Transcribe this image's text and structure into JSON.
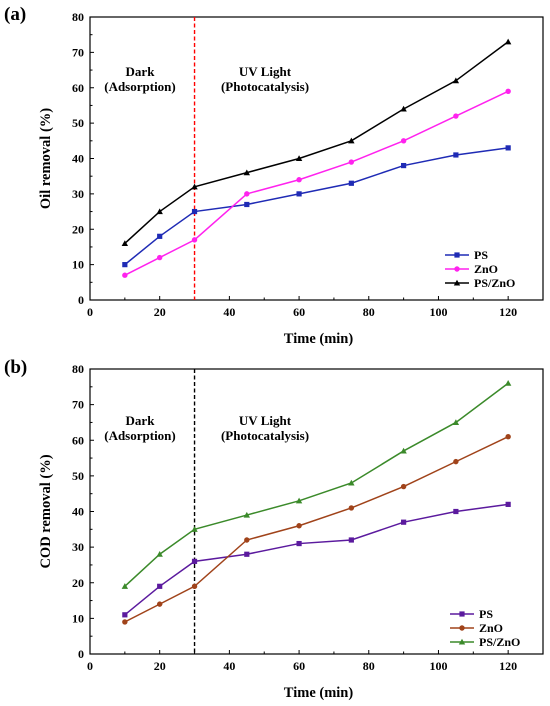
{
  "chart_data": [
    {
      "panel_label": "(a)",
      "type": "line",
      "xlabel": "Time (min)",
      "ylabel": "Oil removal (%)",
      "xlim": [
        0,
        130
      ],
      "ylim": [
        0,
        80
      ],
      "x_ticks": [
        0,
        20,
        40,
        60,
        80,
        100,
        120
      ],
      "y_ticks": [
        0,
        10,
        20,
        30,
        40,
        50,
        60,
        70,
        80
      ],
      "x": [
        10,
        20,
        30,
        45,
        60,
        75,
        90,
        105,
        120
      ],
      "series": [
        {
          "name": "PS",
          "color": "#1f2bb5",
          "marker": "square",
          "values": [
            10,
            18,
            25,
            27,
            30,
            33,
            38,
            41,
            43
          ]
        },
        {
          "name": "ZnO",
          "color": "#ff22ee",
          "marker": "circle",
          "values": [
            7,
            12,
            17,
            30,
            34,
            39,
            45,
            52,
            59
          ]
        },
        {
          "name": "PS/ZnO",
          "color": "#000000",
          "marker": "triangle",
          "values": [
            16,
            25,
            32,
            36,
            40,
            45,
            54,
            62,
            73
          ]
        }
      ],
      "divider": {
        "x": 30,
        "color": "#ff0000"
      },
      "regions": [
        {
          "lines": [
            "Dark",
            "(Adsorption)"
          ]
        },
        {
          "lines": [
            "UV Light",
            "(Photocatalysis)"
          ]
        }
      ],
      "legend": "bottom-right",
      "grid": false
    },
    {
      "panel_label": "(b)",
      "type": "line",
      "xlabel": "Time (min)",
      "ylabel": "COD removal (%)",
      "xlim": [
        0,
        130
      ],
      "ylim": [
        0,
        80
      ],
      "x_ticks": [
        0,
        20,
        40,
        60,
        80,
        100,
        120
      ],
      "y_ticks": [
        0,
        10,
        20,
        30,
        40,
        50,
        60,
        70,
        80
      ],
      "x": [
        10,
        20,
        30,
        45,
        60,
        75,
        90,
        105,
        120
      ],
      "series": [
        {
          "name": "PS",
          "color": "#5b1a9e",
          "marker": "square",
          "values": [
            11,
            19,
            26,
            28,
            31,
            32,
            37,
            40,
            42
          ]
        },
        {
          "name": "ZnO",
          "color": "#a0431a",
          "marker": "circle",
          "values": [
            9,
            14,
            19,
            32,
            36,
            41,
            47,
            54,
            61
          ]
        },
        {
          "name": "PS/ZnO",
          "color": "#3b8a2a",
          "marker": "triangle",
          "values": [
            19,
            28,
            35,
            39,
            43,
            48,
            57,
            65,
            76
          ]
        }
      ],
      "divider": {
        "x": 30,
        "color": "#000000"
      },
      "regions": [
        {
          "lines": [
            "Dark",
            "(Adsorption)"
          ]
        },
        {
          "lines": [
            "UV Light",
            "(Photocatalysis)"
          ]
        }
      ],
      "legend": "bottom-right",
      "grid": false
    }
  ]
}
